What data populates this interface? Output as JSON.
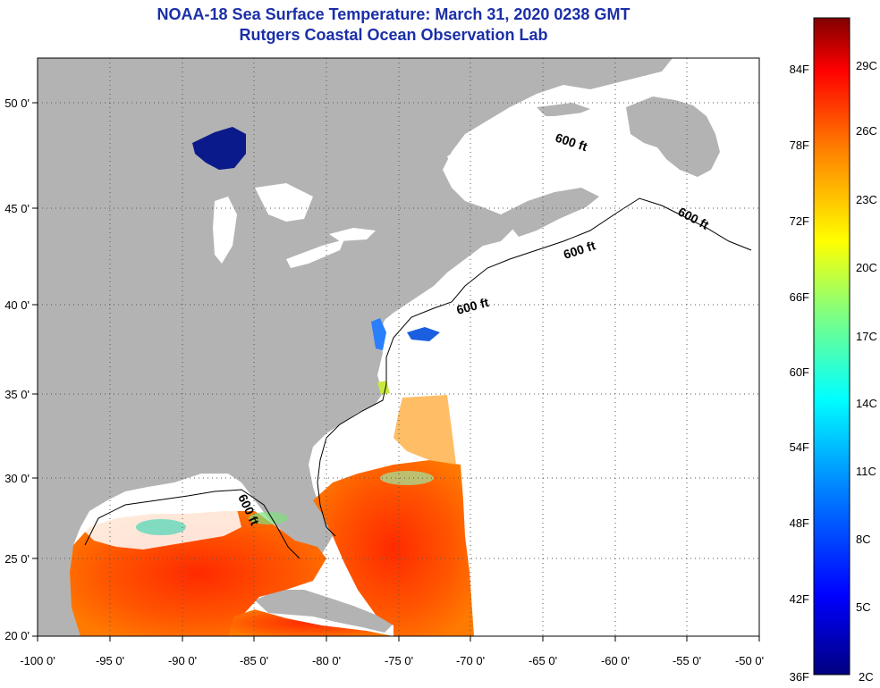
{
  "title": {
    "line1": "NOAA-18 Sea Surface Temperature:  March 31, 2020 0238 GMT",
    "line2": "Rutgers Coastal Ocean Observation Lab"
  },
  "axes": {
    "longitude_labels": [
      "-100 0'",
      "-95 0'",
      "-90 0'",
      "-85 0'",
      "-80 0'",
      "-75 0'",
      "-70 0'",
      "-65 0'",
      "-60 0'",
      "-55 0'",
      "-50 0'"
    ],
    "latitude_labels": [
      "50 0'",
      "45 0'",
      "40 0'",
      "35 0'",
      "30 0'",
      "25 0'",
      "20 0'"
    ]
  },
  "contours": {
    "label": "600 ft"
  },
  "colorbar": {
    "fahrenheit_labels": [
      "84F",
      "78F",
      "72F",
      "66F",
      "60F",
      "54F",
      "48F",
      "42F",
      "36F"
    ],
    "celsius_labels": [
      "29C",
      "26C",
      "23C",
      "20C",
      "17C",
      "14C",
      "11C",
      "8C",
      "5C",
      "2C"
    ],
    "colors": [
      "#000080",
      "#0000ff",
      "#0080ff",
      "#00ffff",
      "#80ff80",
      "#ffff00",
      "#ff8000",
      "#ff0000",
      "#800000"
    ]
  },
  "colors": {
    "land": "#b3b3b3",
    "ocean_nodata": "#ffffff",
    "title": "#1b2fa8"
  }
}
